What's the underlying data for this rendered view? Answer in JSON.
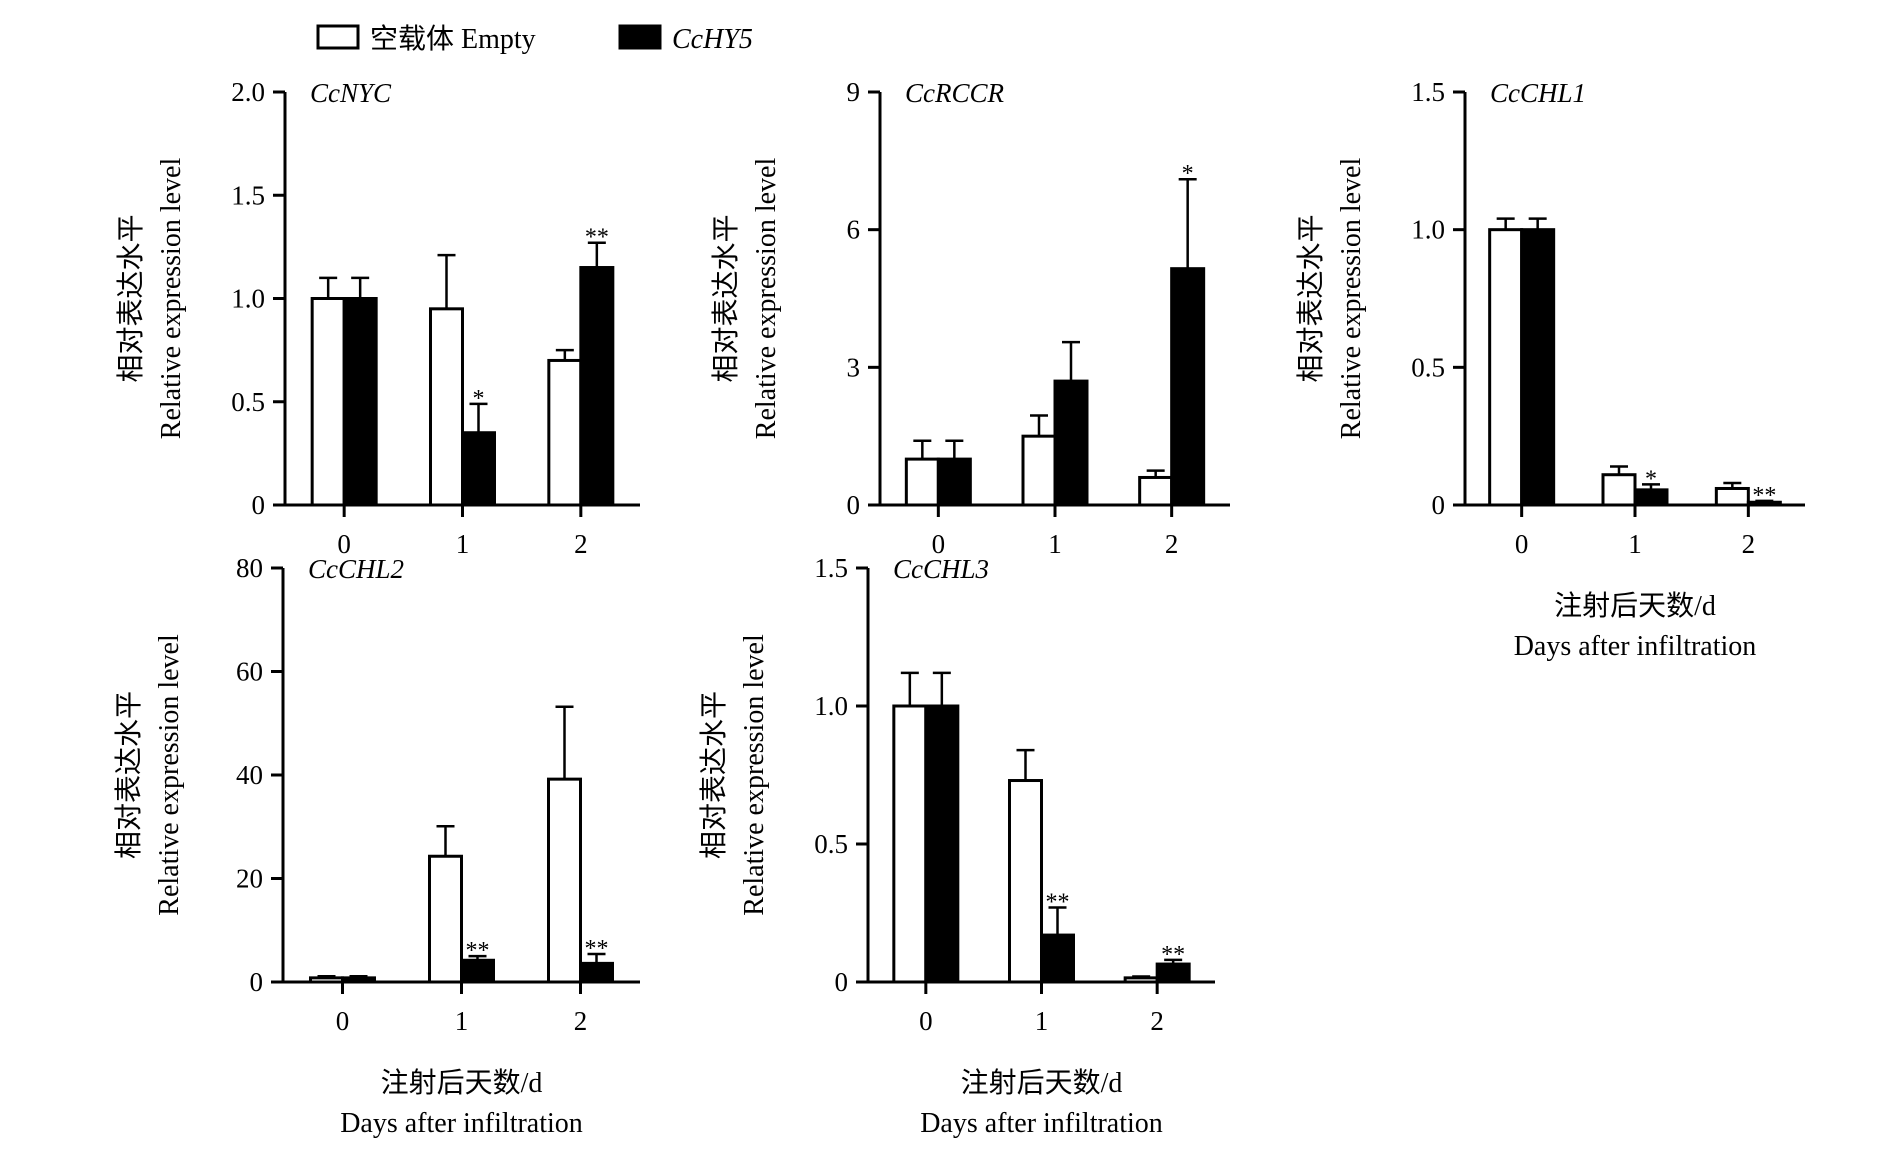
{
  "legend": {
    "empty_label": "空载体 Empty",
    "hy5_label": "CcHY5",
    "empty_color": "#ffffff",
    "hy5_color": "#000000"
  },
  "axis_text": {
    "ylabel_cn": "相对表达水平",
    "ylabel_en": "Relative expression level",
    "xlabel_cn": "注射后天数/d",
    "xlabel_en": "Days after infiltration"
  },
  "chart_data": [
    {
      "type": "bar",
      "gene": "CcNYC",
      "categories": [
        "0",
        "1",
        "2"
      ],
      "ylim": [
        0,
        2.0
      ],
      "yticks": [
        "0",
        "0.5",
        "1.0",
        "1.5",
        "2.0"
      ],
      "series": [
        {
          "name": "空载体 Empty",
          "values": [
            1.0,
            0.95,
            0.7
          ],
          "errors": [
            0.1,
            0.26,
            0.05
          ],
          "sig": [
            "",
            "",
            ""
          ]
        },
        {
          "name": "CcHY5",
          "values": [
            1.0,
            0.35,
            1.15
          ],
          "errors": [
            0.1,
            0.14,
            0.12
          ],
          "sig": [
            "",
            "*",
            "**"
          ]
        }
      ],
      "show_xlabel": false
    },
    {
      "type": "bar",
      "gene": "CcRCCR",
      "categories": [
        "0",
        "1",
        "2"
      ],
      "ylim": [
        0,
        9
      ],
      "yticks": [
        "0",
        "3",
        "6",
        "9"
      ],
      "series": [
        {
          "name": "空载体 Empty",
          "values": [
            1.0,
            1.5,
            0.6
          ],
          "errors": [
            0.4,
            0.45,
            0.15
          ],
          "sig": [
            "",
            "",
            ""
          ]
        },
        {
          "name": "CcHY5",
          "values": [
            1.0,
            2.7,
            5.15
          ],
          "errors": [
            0.4,
            0.85,
            1.95
          ],
          "sig": [
            "",
            "",
            "*"
          ]
        }
      ],
      "show_xlabel": false
    },
    {
      "type": "bar",
      "gene": "CcCHL1",
      "categories": [
        "0",
        "1",
        "2"
      ],
      "ylim": [
        0,
        1.5
      ],
      "yticks": [
        "0",
        "0.5",
        "1.0",
        "1.5"
      ],
      "series": [
        {
          "name": "空载体 Empty",
          "values": [
            1.0,
            0.11,
            0.06
          ],
          "errors": [
            0.04,
            0.03,
            0.02
          ],
          "sig": [
            "",
            "",
            ""
          ]
        },
        {
          "name": "CcHY5",
          "values": [
            1.0,
            0.055,
            0.01
          ],
          "errors": [
            0.04,
            0.02,
            0.005
          ],
          "sig": [
            "",
            "*",
            "**"
          ]
        }
      ],
      "show_xlabel": true
    },
    {
      "type": "bar",
      "gene": "CcCHL2",
      "categories": [
        "0",
        "1",
        "2"
      ],
      "ylim": [
        0,
        80
      ],
      "yticks": [
        "0",
        "20",
        "40",
        "60",
        "80"
      ],
      "series": [
        {
          "name": "空载体 Empty",
          "values": [
            0.8,
            24.3,
            39.2
          ],
          "errors": [
            0.3,
            5.8,
            14.0
          ],
          "sig": [
            "",
            "",
            ""
          ]
        },
        {
          "name": "CcHY5",
          "values": [
            0.8,
            4.2,
            3.6
          ],
          "errors": [
            0.3,
            0.8,
            1.8
          ],
          "sig": [
            "",
            "**",
            "**"
          ]
        }
      ],
      "show_xlabel": true
    },
    {
      "type": "bar",
      "gene": "CcCHL3",
      "categories": [
        "0",
        "1",
        "2"
      ],
      "ylim": [
        0,
        1.5
      ],
      "yticks": [
        "0",
        "0.5",
        "1.0",
        "1.5"
      ],
      "series": [
        {
          "name": "空载体 Empty",
          "values": [
            1.0,
            0.73,
            0.015
          ],
          "errors": [
            0.12,
            0.11,
            0.005
          ],
          "sig": [
            "",
            "",
            ""
          ]
        },
        {
          "name": "CcHY5",
          "values": [
            1.0,
            0.17,
            0.065
          ],
          "errors": [
            0.12,
            0.1,
            0.015
          ],
          "sig": [
            "",
            "**",
            "**"
          ]
        }
      ],
      "show_xlabel": true
    }
  ]
}
